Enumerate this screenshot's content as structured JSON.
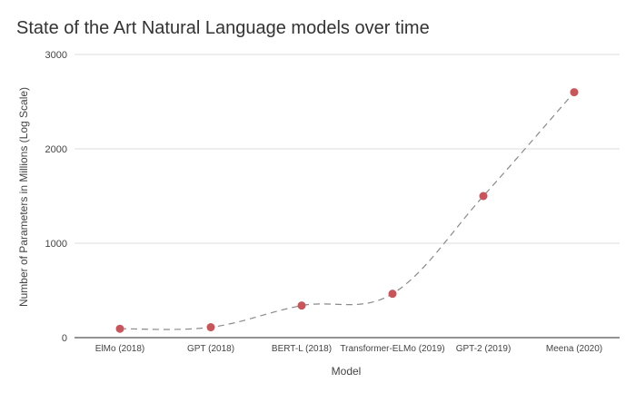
{
  "chart_data": {
    "type": "line",
    "title": "State of the Art Natural Language models over time",
    "xlabel": "Model",
    "ylabel": "Number of Parameters in Millions (Log Scale)",
    "categories": [
      "ElMo (2018)",
      "GPT (2018)",
      "BERT-L (2018)",
      "Transformer-ELMo (2019)",
      "GPT-2 (2019)",
      "Meena (2020)"
    ],
    "series": [
      {
        "values": [
          94,
          110,
          340,
          465,
          1500,
          2600
        ]
      }
    ],
    "ylim": [
      0,
      3000
    ],
    "yticks": [
      "0",
      "1000",
      "2000",
      "3000"
    ],
    "grid": true,
    "legend": "none",
    "line_style": "dashed smooth",
    "colors": {
      "marker": "#c9555b",
      "line": "#8a8a8a",
      "grid": "#dcdcdc",
      "axis": "#555555",
      "title": "#333333",
      "label": "#444444"
    }
  }
}
